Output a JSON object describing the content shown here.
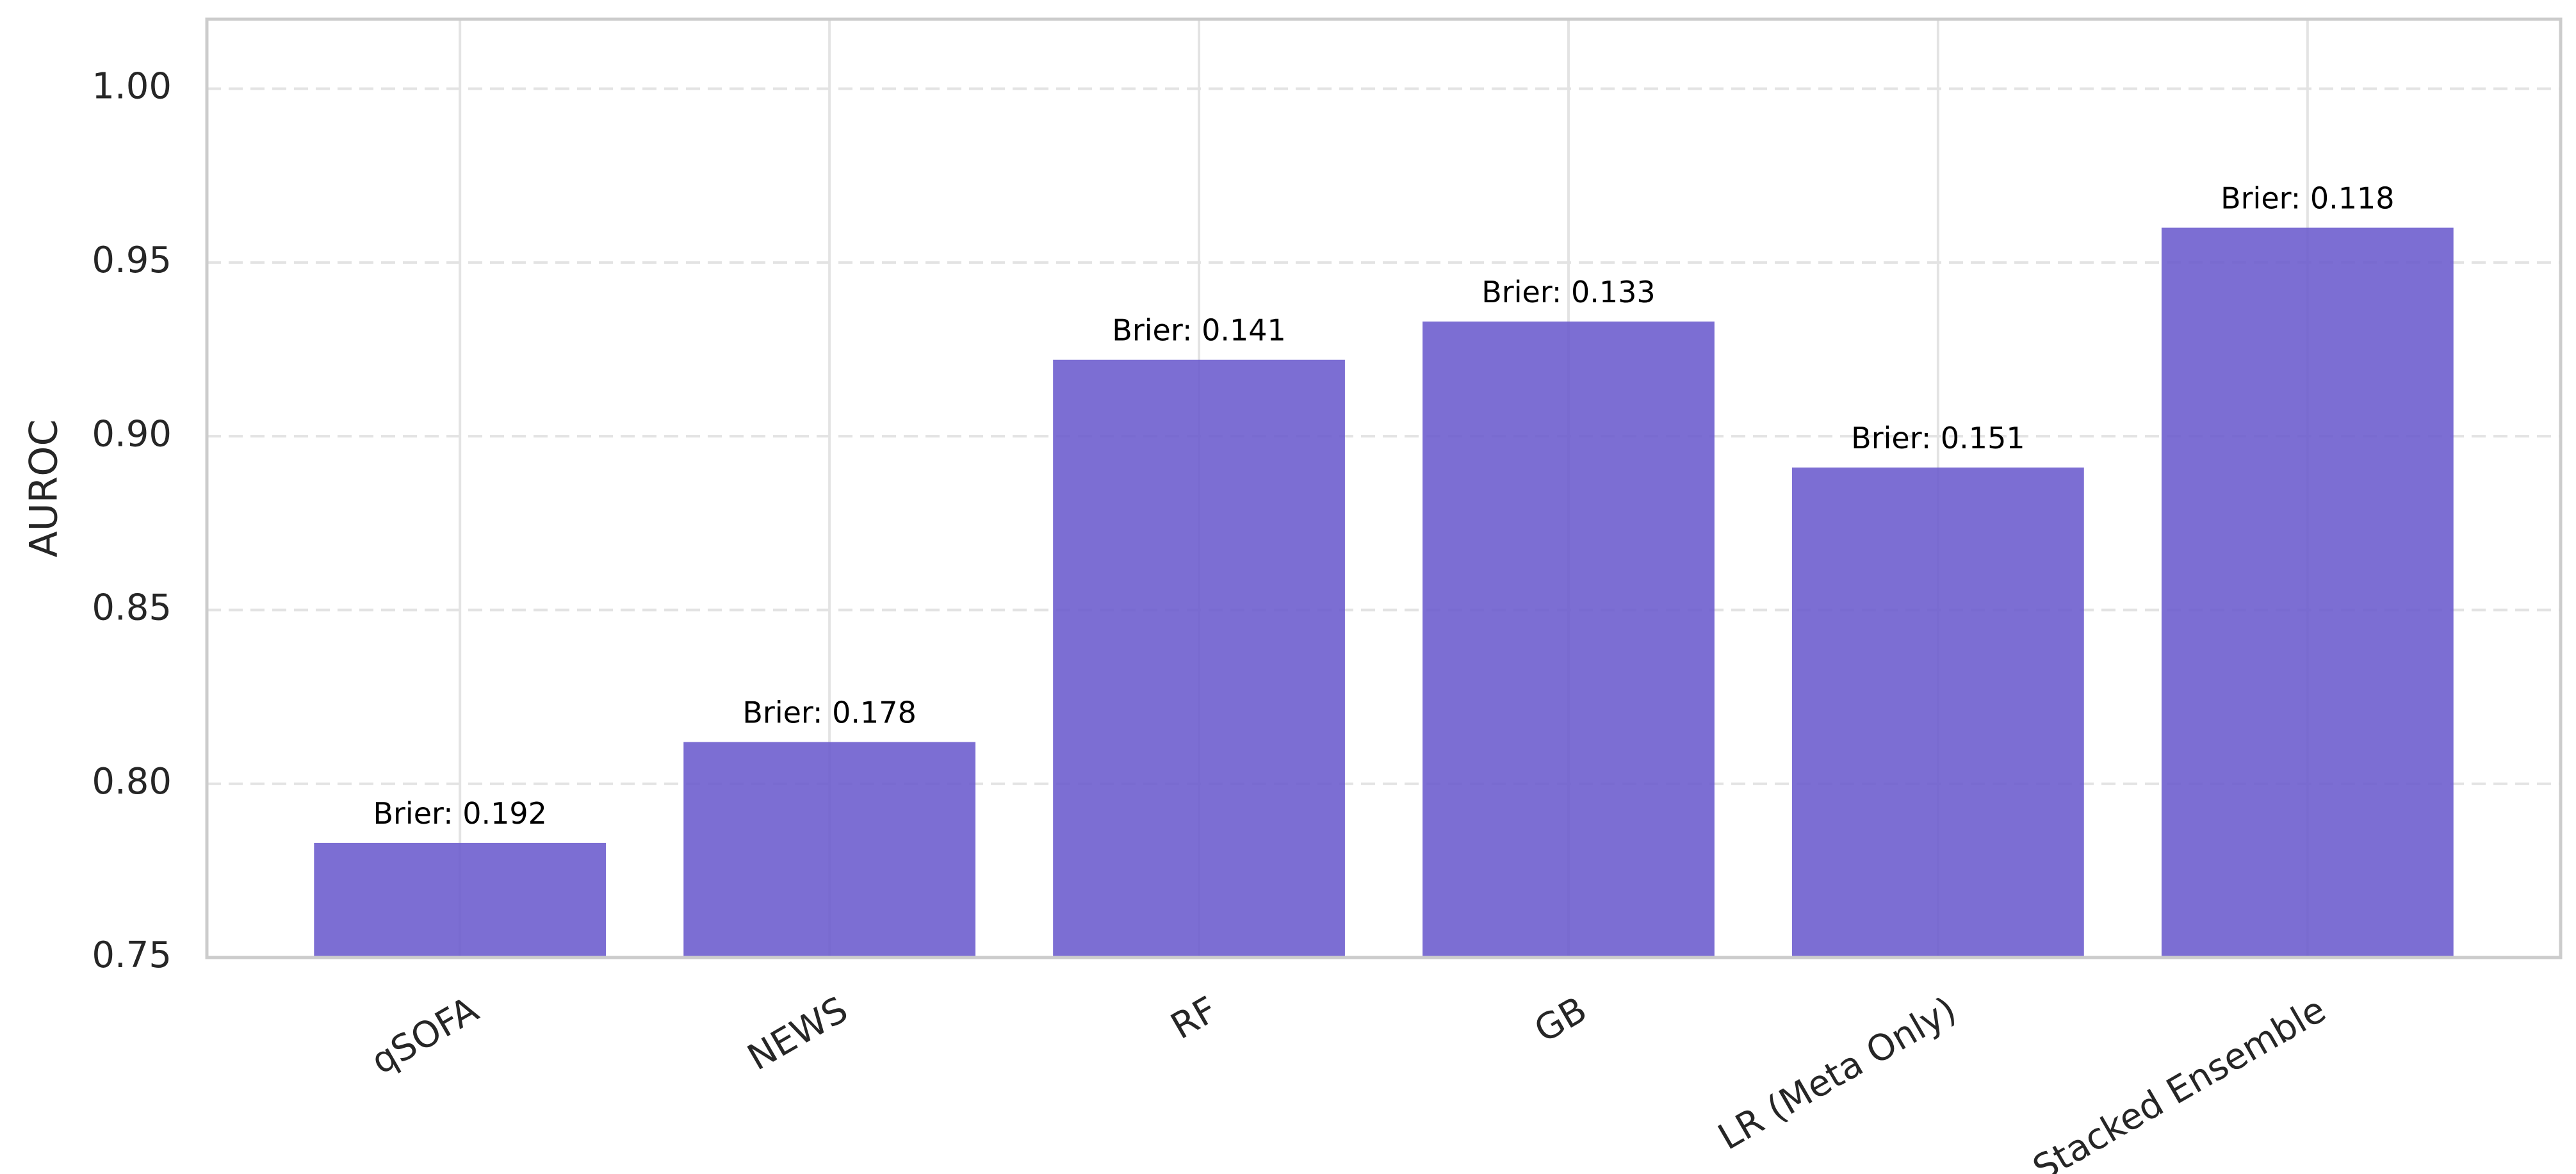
{
  "chart_data": {
    "type": "bar",
    "title": "",
    "xlabel": "",
    "ylabel": "AUROC",
    "categories": [
      "qSOFA",
      "NEWS",
      "RF",
      "GB",
      "LR (Meta Only)",
      "Stacked Ensemble"
    ],
    "values": [
      0.783,
      0.812,
      0.922,
      0.933,
      0.891,
      0.96
    ],
    "annotations": [
      "Brier: 0.192",
      "Brier: 0.178",
      "Brier: 0.141",
      "Brier: 0.133",
      "Brier: 0.151",
      "Brier: 0.118"
    ],
    "ylim": [
      0.75,
      1.02
    ],
    "yticks": [
      "0.75",
      "0.80",
      "0.85",
      "0.90",
      "0.95",
      "1.00"
    ],
    "grid": true,
    "x_tick_rotation_deg": 30,
    "colors": {
      "bar": "#6a5acd",
      "grid": "#e3e3e3",
      "frame": "#cccccc"
    }
  }
}
